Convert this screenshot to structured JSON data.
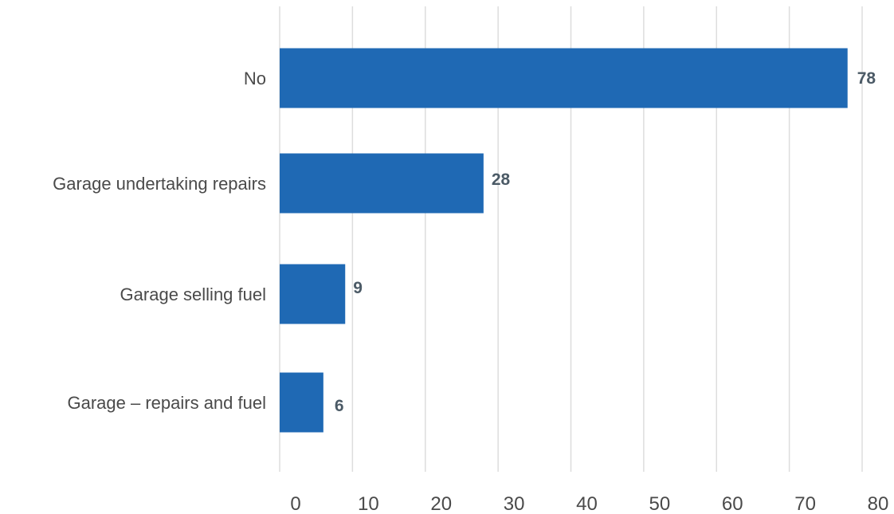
{
  "chart_data": {
    "type": "bar",
    "orientation": "horizontal",
    "categories": [
      "No",
      "Garage undertaking repairs",
      "Garage selling fuel",
      "Garage – repairs and fuel"
    ],
    "values": [
      78,
      28,
      9,
      6
    ],
    "xlim": [
      0,
      80
    ],
    "ticks": [
      0,
      10,
      20,
      30,
      40,
      50,
      60,
      70,
      80
    ],
    "tick_labels": [
      "0",
      "10",
      "20",
      "30",
      "40",
      "50",
      "60",
      "70",
      "80"
    ],
    "grid": true,
    "bar_color": "#1f69b4",
    "data_labels": [
      "78",
      "28",
      "9",
      "6"
    ]
  }
}
